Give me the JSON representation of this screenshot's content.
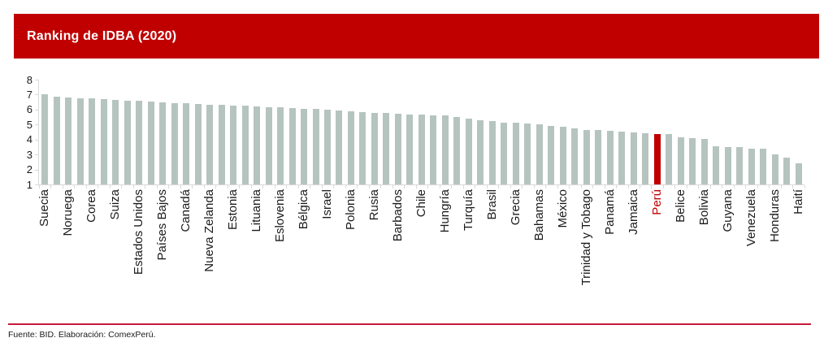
{
  "header": {
    "title": "Ranking de IDBA (2020)"
  },
  "footer": {
    "source": "Fuente: BID. Elaboración: ComexPerú."
  },
  "colors": {
    "banner": "#c00000",
    "bar": "#b6c4bf",
    "highlight": "#c00000",
    "axis": "#d9d9d9",
    "text": "#1a1a1a",
    "footer_line": "#c8193c"
  },
  "chart_data": {
    "type": "bar",
    "title": "Ranking de IDBA (2020)",
    "ylabel": "",
    "xlabel": "",
    "ylim": [
      1,
      8
    ],
    "yticks": [
      1,
      2,
      3,
      4,
      5,
      6,
      7,
      8
    ],
    "grid": false,
    "legend": false,
    "highlight_category": "Perú",
    "note_only_alternate_bars_labeled": true,
    "bars": [
      {
        "label": "Suecia",
        "value": 7.02
      },
      {
        "label": "",
        "value": 6.85
      },
      {
        "label": "Noruega",
        "value": 6.81
      },
      {
        "label": "",
        "value": 6.77
      },
      {
        "label": "Corea",
        "value": 6.74
      },
      {
        "label": "",
        "value": 6.71
      },
      {
        "label": "Suiza",
        "value": 6.67
      },
      {
        "label": "",
        "value": 6.6
      },
      {
        "label": "Estados Unidos",
        "value": 6.57
      },
      {
        "label": "",
        "value": 6.52
      },
      {
        "label": "Países Bajos",
        "value": 6.48
      },
      {
        "label": "",
        "value": 6.44
      },
      {
        "label": "Canadá",
        "value": 6.41
      },
      {
        "label": "",
        "value": 6.38
      },
      {
        "label": "Nueva Zelanda",
        "value": 6.34
      },
      {
        "label": "",
        "value": 6.31
      },
      {
        "label": "Estonia",
        "value": 6.27
      },
      {
        "label": "",
        "value": 6.24
      },
      {
        "label": "Lituania",
        "value": 6.21
      },
      {
        "label": "",
        "value": 6.17
      },
      {
        "label": "Eslovenia",
        "value": 6.14
      },
      {
        "label": "",
        "value": 6.1
      },
      {
        "label": "Bélgica",
        "value": 6.06
      },
      {
        "label": "",
        "value": 6.02
      },
      {
        "label": "Israel",
        "value": 5.98
      },
      {
        "label": "",
        "value": 5.94
      },
      {
        "label": "Polonia",
        "value": 5.9
      },
      {
        "label": "",
        "value": 5.85
      },
      {
        "label": "Rusia",
        "value": 5.8
      },
      {
        "label": "",
        "value": 5.76
      },
      {
        "label": "Barbados",
        "value": 5.72
      },
      {
        "label": "",
        "value": 5.69
      },
      {
        "label": "Chile",
        "value": 5.66
      },
      {
        "label": "",
        "value": 5.63
      },
      {
        "label": "Hungría",
        "value": 5.6
      },
      {
        "label": "",
        "value": 5.52
      },
      {
        "label": "Turquía",
        "value": 5.42
      },
      {
        "label": "",
        "value": 5.3
      },
      {
        "label": "Brasil",
        "value": 5.21
      },
      {
        "label": "",
        "value": 5.15
      },
      {
        "label": "Grecia",
        "value": 5.11
      },
      {
        "label": "",
        "value": 5.07
      },
      {
        "label": "Bahamas",
        "value": 5.03
      },
      {
        "label": "",
        "value": 4.92
      },
      {
        "label": "México",
        "value": 4.86
      },
      {
        "label": "",
        "value": 4.73
      },
      {
        "label": "Trinidad y Tobago",
        "value": 4.66
      },
      {
        "label": "",
        "value": 4.62
      },
      {
        "label": "Panamá",
        "value": 4.58
      },
      {
        "label": "",
        "value": 4.53
      },
      {
        "label": "Jamaica",
        "value": 4.47
      },
      {
        "label": "",
        "value": 4.44
      },
      {
        "label": "Perú",
        "value": 4.39,
        "highlight": true
      },
      {
        "label": "",
        "value": 4.34
      },
      {
        "label": "Belice",
        "value": 4.13
      },
      {
        "label": "",
        "value": 4.11
      },
      {
        "label": "Bolivia",
        "value": 4.03
      },
      {
        "label": "",
        "value": 3.56
      },
      {
        "label": "Guyana",
        "value": 3.52
      },
      {
        "label": "",
        "value": 3.5
      },
      {
        "label": "Venezuela",
        "value": 3.41
      },
      {
        "label": "",
        "value": 3.38
      },
      {
        "label": "Honduras",
        "value": 3.0
      },
      {
        "label": "",
        "value": 2.8
      },
      {
        "label": "Haití",
        "value": 2.43
      }
    ]
  }
}
